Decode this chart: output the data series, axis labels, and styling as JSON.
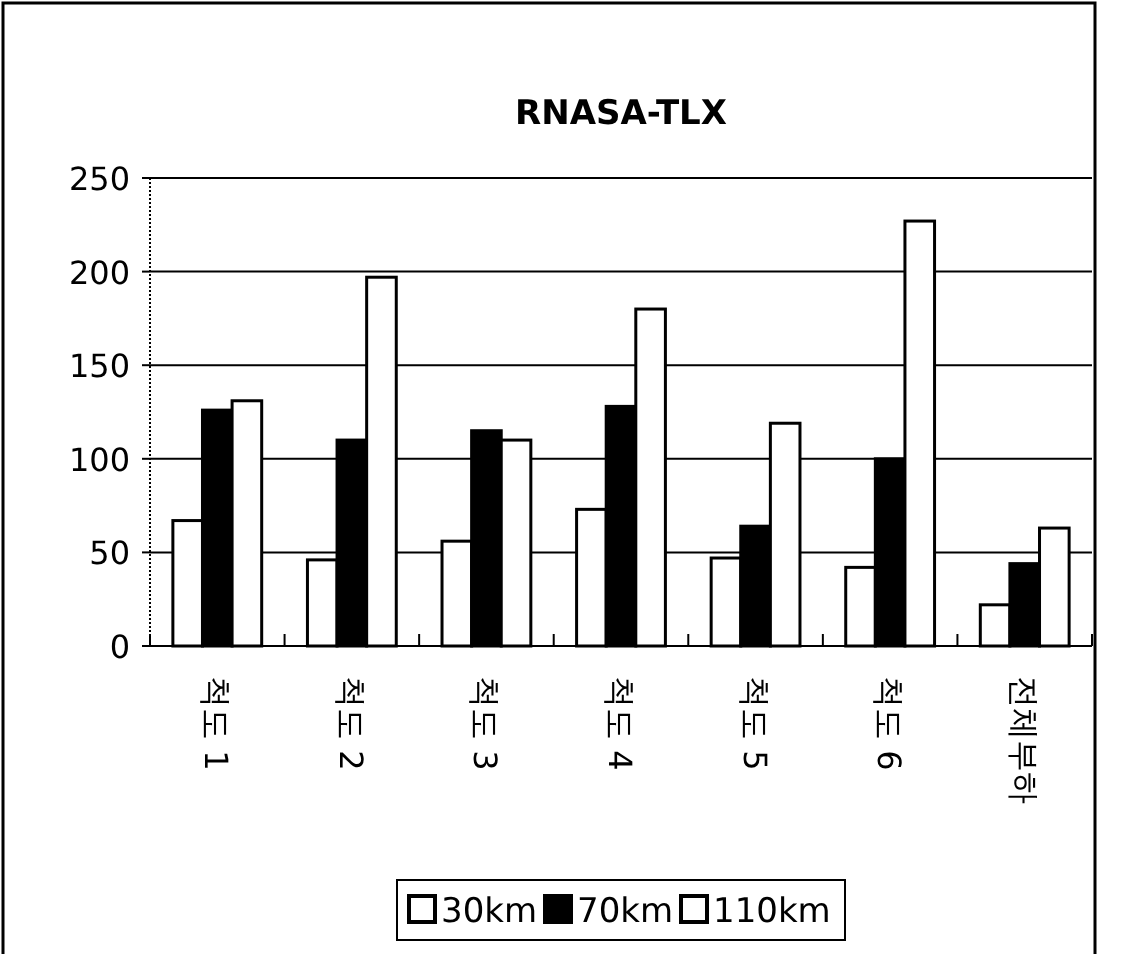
{
  "chart_data": {
    "type": "bar",
    "title": "RNASA-TLX",
    "categories": [
      "척도 1",
      "척도 2",
      "척도 3",
      "척도 4",
      "척도 5",
      "척도 6",
      "전체부하"
    ],
    "series": [
      {
        "name": "30km",
        "color": "#ffffff",
        "values": [
          67,
          46,
          56,
          73,
          47,
          42,
          22
        ]
      },
      {
        "name": "70km",
        "color": "#000000",
        "values": [
          126,
          110,
          115,
          128,
          64,
          100,
          44
        ]
      },
      {
        "name": "110km",
        "color": "#ffffff",
        "values": [
          131,
          197,
          110,
          180,
          119,
          227,
          63
        ]
      }
    ],
    "ylim": [
      0,
      250
    ],
    "yticks": [
      0,
      50,
      100,
      150,
      200,
      250
    ],
    "grid": "y",
    "legend": "bottom"
  }
}
